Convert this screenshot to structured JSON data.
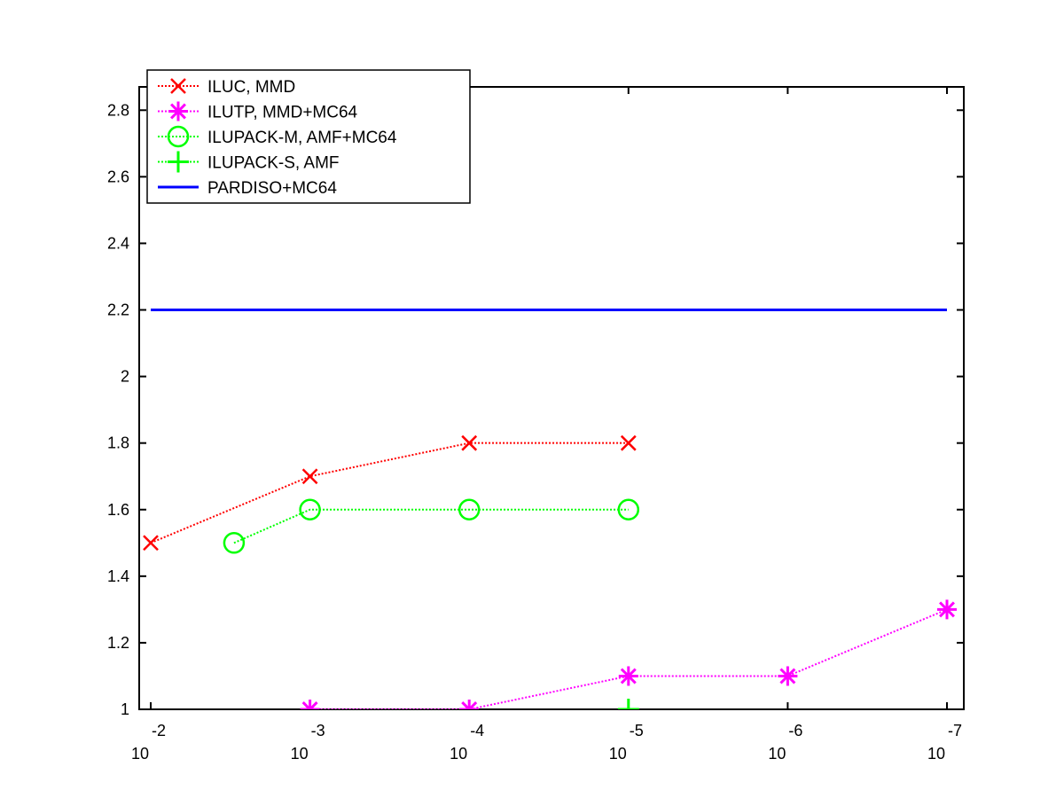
{
  "chart_data": {
    "type": "line",
    "title": "",
    "xlabel": "",
    "ylabel": "",
    "x_scale": "log",
    "x_reversed": true,
    "xlim": [
      0.01,
      1e-07
    ],
    "ylim": [
      1,
      2.87
    ],
    "grid": false,
    "legend_position": "top-left",
    "x_ticks": [
      {
        "value": 0.01,
        "base": "10",
        "exp": "-2"
      },
      {
        "value": 0.001,
        "base": "10",
        "exp": "-3"
      },
      {
        "value": 0.0001,
        "base": "10",
        "exp": "-4"
      },
      {
        "value": 1e-05,
        "base": "10",
        "exp": "-5"
      },
      {
        "value": 1e-06,
        "base": "10",
        "exp": "-6"
      },
      {
        "value": 1e-07,
        "base": "10",
        "exp": "-7"
      }
    ],
    "y_ticks": [
      {
        "value": 1,
        "label": "1"
      },
      {
        "value": 1.2,
        "label": "1.2"
      },
      {
        "value": 1.4,
        "label": "1.4"
      },
      {
        "value": 1.6,
        "label": "1.6"
      },
      {
        "value": 1.8,
        "label": "1.8"
      },
      {
        "value": 2,
        "label": "2"
      },
      {
        "value": 2.2,
        "label": "2.2"
      },
      {
        "value": 2.4,
        "label": "2.4"
      },
      {
        "value": 2.6,
        "label": "2.6"
      },
      {
        "value": 2.8,
        "label": "2.8"
      }
    ],
    "series": [
      {
        "name": "ILUC, MMD",
        "color": "#ff0000",
        "marker": "x",
        "linestyle": "dotted",
        "x": [
          0.01,
          0.001,
          0.0001,
          1e-05
        ],
        "y": [
          1.5,
          1.7,
          1.8,
          1.8
        ]
      },
      {
        "name": "ILUTP, MMD+MC64",
        "color": "#ff00ff",
        "marker": "star",
        "linestyle": "dotted",
        "x": [
          0.001,
          0.0001,
          1e-05,
          1e-06,
          1e-07
        ],
        "y": [
          1.0,
          1.0,
          1.1,
          1.1,
          1.3
        ]
      },
      {
        "name": "ILUPACK-M, AMF+MC64",
        "color": "#00ff00",
        "marker": "circle",
        "linestyle": "dotted",
        "x": [
          0.003,
          0.001,
          0.0001,
          1e-05
        ],
        "y": [
          1.5,
          1.6,
          1.6,
          1.6
        ]
      },
      {
        "name": "ILUPACK-S, AMF",
        "color": "#00ff00",
        "marker": "plus",
        "linestyle": "dotted",
        "x": [
          1e-05
        ],
        "y": [
          1.0
        ]
      },
      {
        "name": "PARDISO+MC64",
        "color": "#0000ff",
        "marker": "none",
        "linestyle": "solid",
        "x": [
          0.01,
          1e-07
        ],
        "y": [
          2.2,
          2.2
        ]
      }
    ]
  }
}
